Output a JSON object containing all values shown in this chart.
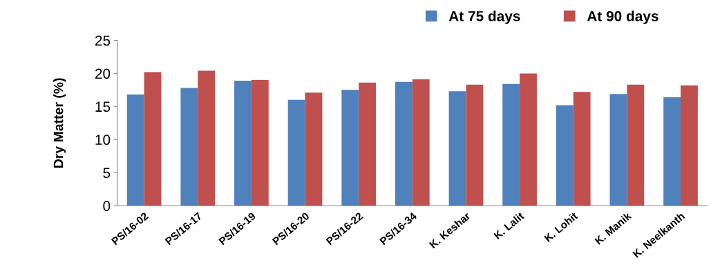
{
  "chart_data": {
    "type": "bar",
    "ylabel": "Dry Matter (%)",
    "categories": [
      "PS/16-02",
      "PS/16-17",
      "PS/16-19",
      "PS/16-20",
      "PS/16-22",
      "PS/16-34",
      "K. Keshar",
      "K. Lalit",
      "K. Lohit",
      "K. Manik",
      "K. Neelkanth"
    ],
    "series": [
      {
        "name": "At 75 days",
        "color": "#4f81bd",
        "values": [
          16.8,
          17.8,
          18.9,
          16.0,
          17.5,
          18.7,
          17.3,
          18.4,
          15.2,
          16.9,
          16.4
        ]
      },
      {
        "name": "At 90 days",
        "color": "#c0504d",
        "values": [
          20.2,
          20.4,
          19.0,
          17.1,
          18.6,
          19.1,
          18.3,
          20.0,
          17.2,
          18.3,
          18.2
        ]
      }
    ],
    "ylim": [
      0,
      25
    ],
    "yticks": [
      0,
      5,
      10,
      15,
      20,
      25
    ],
    "grid": false,
    "legend": "top"
  }
}
